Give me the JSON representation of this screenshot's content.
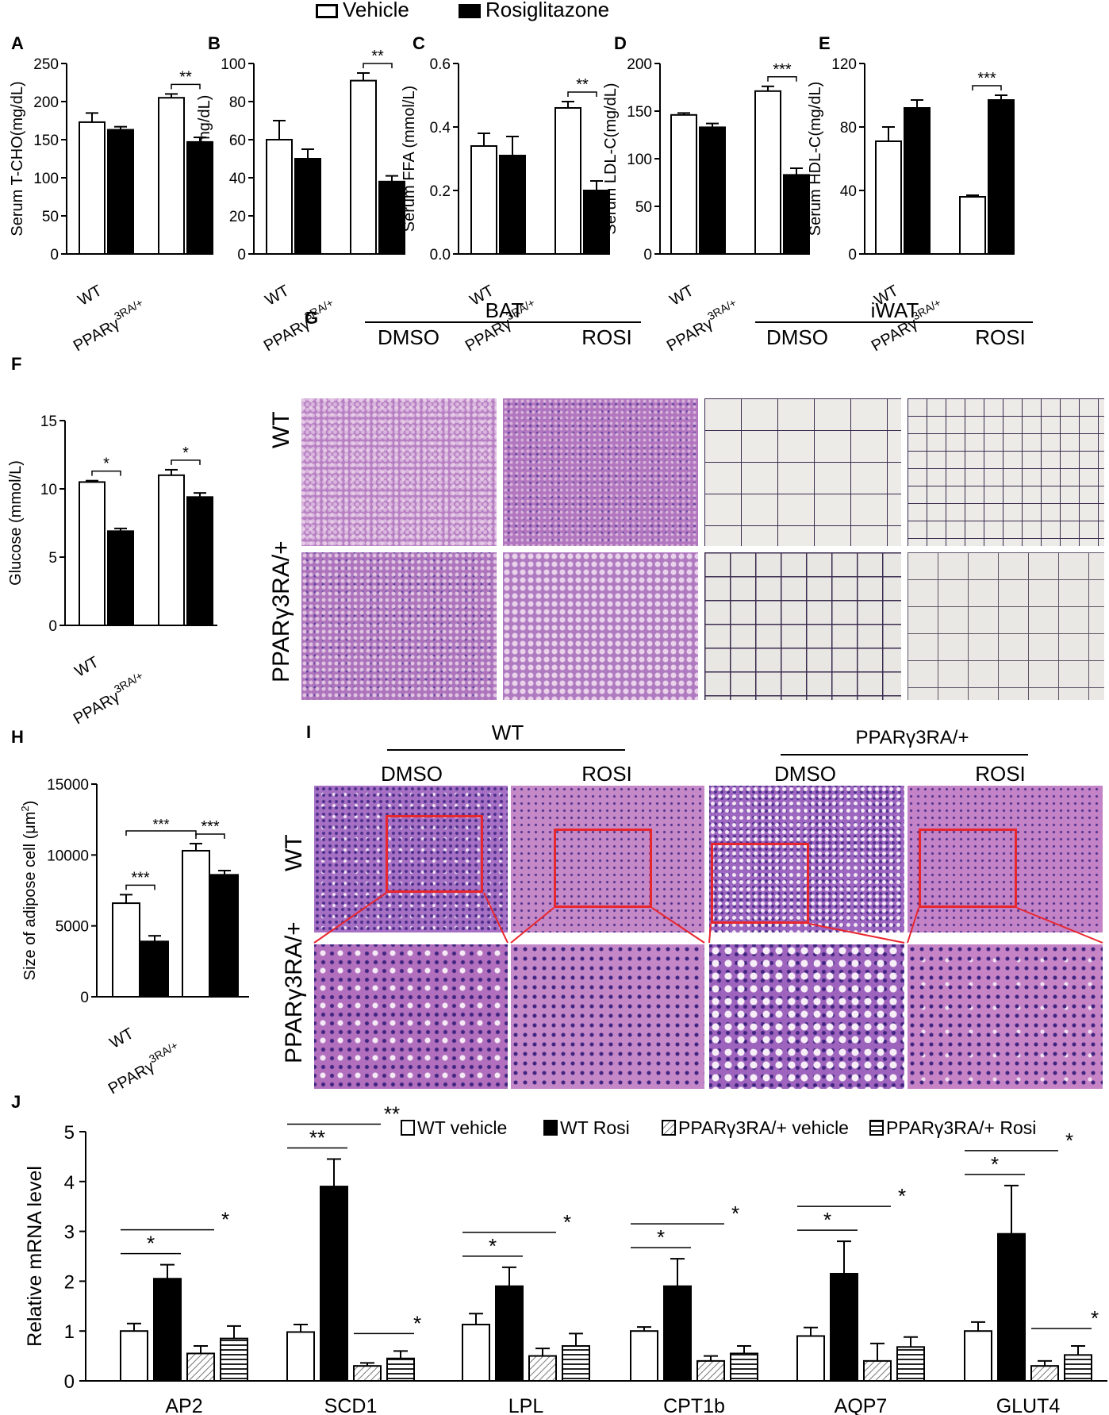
{
  "legend_top": {
    "items": [
      {
        "label": "Vehicle",
        "fill": "#ffffff"
      },
      {
        "label": "Rosiglitazone",
        "fill": "#000000"
      }
    ]
  },
  "chart_data": [
    {
      "panel": "A",
      "type": "bar",
      "ylabel": "Serum T-CHO(mg/dL)",
      "categories": [
        "WT",
        "PPARγ3RA/+"
      ],
      "ylim": [
        0,
        250
      ],
      "yticks": [
        0,
        50,
        100,
        150,
        200,
        250
      ],
      "series": [
        {
          "name": "Vehicle",
          "values": [
            173,
            205
          ],
          "errors": [
            12,
            5
          ]
        },
        {
          "name": "Rosiglitazone",
          "values": [
            163,
            147
          ],
          "errors": [
            4,
            6
          ]
        }
      ],
      "significance": [
        {
          "group": 1,
          "label": "**"
        }
      ]
    },
    {
      "panel": "B",
      "type": "bar",
      "ylabel": "Serum TG(mg/dL)",
      "categories": [
        "WT",
        "PPARγ3RA/+"
      ],
      "ylim": [
        0,
        100
      ],
      "yticks": [
        0,
        20,
        40,
        60,
        80,
        100
      ],
      "series": [
        {
          "name": "Vehicle",
          "values": [
            60,
            91
          ],
          "errors": [
            10,
            4
          ]
        },
        {
          "name": "Rosiglitazone",
          "values": [
            50,
            38
          ],
          "errors": [
            5,
            3
          ]
        }
      ],
      "significance": [
        {
          "group": 1,
          "label": "**"
        }
      ]
    },
    {
      "panel": "C",
      "type": "bar",
      "ylabel": "Serum FFA (mmol/L)",
      "categories": [
        "WT",
        "PPARγ3RA/+"
      ],
      "ylim": [
        0,
        0.6
      ],
      "yticks": [
        "0.0",
        "0.2",
        "0.4",
        "0.6"
      ],
      "series": [
        {
          "name": "Vehicle",
          "values": [
            0.34,
            0.46
          ],
          "errors": [
            0.04,
            0.02
          ]
        },
        {
          "name": "Rosiglitazone",
          "values": [
            0.31,
            0.2
          ],
          "errors": [
            0.06,
            0.03
          ]
        }
      ],
      "significance": [
        {
          "group": 1,
          "label": "**"
        }
      ]
    },
    {
      "panel": "D",
      "type": "bar",
      "ylabel": "Serum LDL-C(mg/dL)",
      "categories": [
        "WT",
        "PPARγ3RA/+"
      ],
      "ylim": [
        0,
        200
      ],
      "yticks": [
        0,
        50,
        100,
        150,
        200
      ],
      "series": [
        {
          "name": "Vehicle",
          "values": [
            146,
            171
          ],
          "errors": [
            2,
            5
          ]
        },
        {
          "name": "Rosiglitazone",
          "values": [
            133,
            83
          ],
          "errors": [
            4,
            7
          ]
        }
      ],
      "significance": [
        {
          "group": 1,
          "label": "***"
        }
      ]
    },
    {
      "panel": "E",
      "type": "bar",
      "ylabel": "Serum HDL-C(mg/dL)",
      "categories": [
        "WT",
        "PPARγ3RA/+"
      ],
      "ylim": [
        0,
        120
      ],
      "yticks": [
        0,
        40,
        80,
        120
      ],
      "series": [
        {
          "name": "Vehicle",
          "values": [
            71,
            36
          ],
          "errors": [
            9,
            1
          ]
        },
        {
          "name": "Rosiglitazone",
          "values": [
            92,
            97
          ],
          "errors": [
            5,
            3
          ]
        }
      ],
      "significance": [
        {
          "group": 1,
          "label": "***"
        }
      ]
    },
    {
      "panel": "F",
      "type": "bar",
      "ylabel": "Glucose (mmol/L)",
      "categories": [
        "WT",
        "PPARγ3RA/+"
      ],
      "ylim": [
        0,
        15
      ],
      "yticks": [
        0,
        5,
        10,
        15
      ],
      "series": [
        {
          "name": "Vehicle",
          "values": [
            10.5,
            11.0
          ],
          "errors": [
            0.1,
            0.4
          ]
        },
        {
          "name": "Rosiglitazone",
          "values": [
            6.9,
            9.4
          ],
          "errors": [
            0.2,
            0.3
          ]
        }
      ],
      "significance": [
        {
          "group": 0,
          "label": "*"
        },
        {
          "group": 1,
          "label": "*"
        }
      ]
    },
    {
      "panel": "H",
      "type": "bar",
      "ylabel": "Size of adipose cell (μm2)",
      "categories": [
        "WT",
        "PPARγ3RA/+"
      ],
      "ylim": [
        0,
        15000
      ],
      "yticks": [
        0,
        5000,
        10000,
        15000
      ],
      "series": [
        {
          "name": "Vehicle",
          "values": [
            6600,
            10300
          ],
          "errors": [
            600,
            500
          ]
        },
        {
          "name": "Rosiglitazone",
          "values": [
            3900,
            8600
          ],
          "errors": [
            400,
            300
          ]
        }
      ],
      "significance": [
        {
          "type": "within",
          "group": 0,
          "label": "***"
        },
        {
          "type": "within",
          "group": 1,
          "label": "***"
        },
        {
          "type": "between",
          "label": "***"
        }
      ]
    },
    {
      "panel": "J",
      "type": "bar",
      "ylabel": "Relative mRNA level",
      "categories": [
        "AP2",
        "SCD1",
        "LPL",
        "CPT1b",
        "AQP7",
        "GLUT4"
      ],
      "ylim": [
        0,
        5
      ],
      "yticks": [
        0,
        1,
        2,
        3,
        4,
        5
      ],
      "series": [
        {
          "name": "WT vehicle",
          "values": [
            1.0,
            0.98,
            1.13,
            1.0,
            0.9,
            1.0
          ],
          "errors": [
            0.15,
            0.15,
            0.22,
            0.08,
            0.17,
            0.18
          ]
        },
        {
          "name": "WT Rosi",
          "values": [
            2.05,
            3.9,
            1.9,
            1.9,
            2.15,
            2.95
          ],
          "errors": [
            0.28,
            0.55,
            0.38,
            0.55,
            0.65,
            0.97
          ]
        },
        {
          "name": "PPARγ3RA/+ vehicle",
          "values": [
            0.55,
            0.3,
            0.5,
            0.4,
            0.4,
            0.3
          ],
          "errors": [
            0.15,
            0.06,
            0.15,
            0.1,
            0.35,
            0.1
          ]
        },
        {
          "name": "PPARγ3RA/+ Rosi",
          "values": [
            0.85,
            0.45,
            0.7,
            0.55,
            0.68,
            0.52
          ],
          "errors": [
            0.25,
            0.15,
            0.25,
            0.15,
            0.2,
            0.18
          ]
        }
      ],
      "significance": [
        {
          "group": 0,
          "lines": [
            {
              "label": "*"
            },
            {
              "label": "*"
            }
          ]
        },
        {
          "group": 1,
          "lines": [
            {
              "label": "**"
            },
            {
              "label": "**"
            },
            {
              "label": "*",
              "type": "pppr"
            }
          ]
        },
        {
          "group": 2,
          "lines": [
            {
              "label": "*"
            },
            {
              "label": "*"
            }
          ]
        },
        {
          "group": 3,
          "lines": [
            {
              "label": "*"
            },
            {
              "label": "*"
            }
          ]
        },
        {
          "group": 4,
          "lines": [
            {
              "label": "*"
            },
            {
              "label": "*"
            }
          ]
        },
        {
          "group": 5,
          "lines": [
            {
              "label": "*"
            },
            {
              "label": "*"
            },
            {
              "label": "*",
              "type": "pppr"
            }
          ]
        }
      ]
    }
  ],
  "panel_G": {
    "letter": "G",
    "group_headers": [
      "BAT",
      "iWAT"
    ],
    "col_headers": [
      "DMSO",
      "ROSI",
      "DMSO",
      "ROSI"
    ],
    "row_labels": [
      "WT",
      "PPARγ3RA/+"
    ]
  },
  "panel_I": {
    "letter": "I",
    "group_headers": [
      "WT",
      "PPARγ3RA/+"
    ],
    "col_headers": [
      "DMSO",
      "ROSI",
      "DMSO",
      "ROSI"
    ],
    "row_labels": [
      "WT",
      "PPARγ3RA/+"
    ]
  },
  "colors": {
    "he_stain_pink": "#c86bb8",
    "he_stain_purple": "#6a3d9a",
    "adipose_bg": "#eceae6",
    "roi_box": "#e8262e"
  }
}
